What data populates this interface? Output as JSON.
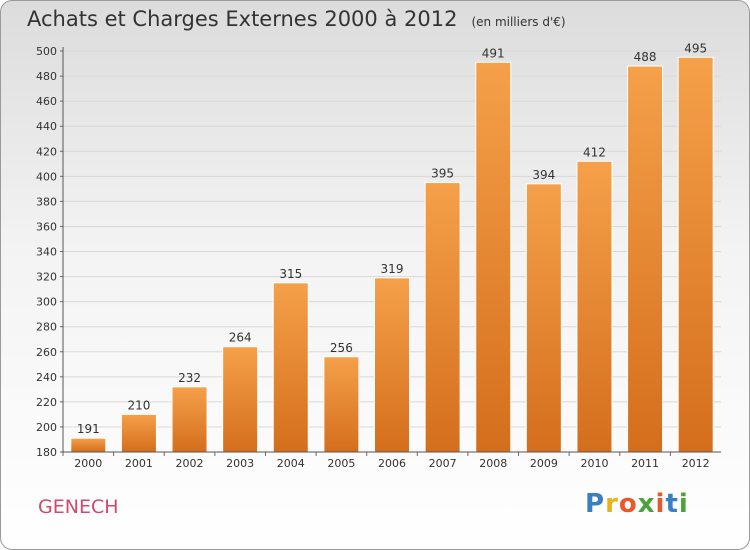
{
  "header": {
    "title": "Achats et Charges Externes 2000 à 2012",
    "subtitle": "(en milliers d'€)"
  },
  "footer": {
    "commune": "GENECH",
    "logo_letters": [
      "P",
      "r",
      "o",
      "x",
      "i",
      "t",
      "i"
    ],
    "logo_colors": [
      "#3a7fc4",
      "#e8b21f",
      "#e8582a",
      "#4aa33b",
      "#e8582a",
      "#3a7fc4",
      "#4aa33b"
    ]
  },
  "chart_data": {
    "type": "bar",
    "categories": [
      "2000",
      "2001",
      "2002",
      "2003",
      "2004",
      "2005",
      "2006",
      "2007",
      "2008",
      "2009",
      "2010",
      "2011",
      "2012"
    ],
    "values": [
      191,
      210,
      232,
      264,
      315,
      256,
      319,
      395,
      491,
      394,
      412,
      488,
      495
    ],
    "ylim": [
      180,
      500
    ],
    "yticks": [
      180,
      200,
      220,
      240,
      260,
      280,
      300,
      320,
      340,
      360,
      380,
      400,
      420,
      440,
      460,
      480,
      500
    ],
    "bar_color_top": "#f5a04a",
    "bar_color_bottom": "#d46e1c",
    "grid": true,
    "legend": false
  }
}
